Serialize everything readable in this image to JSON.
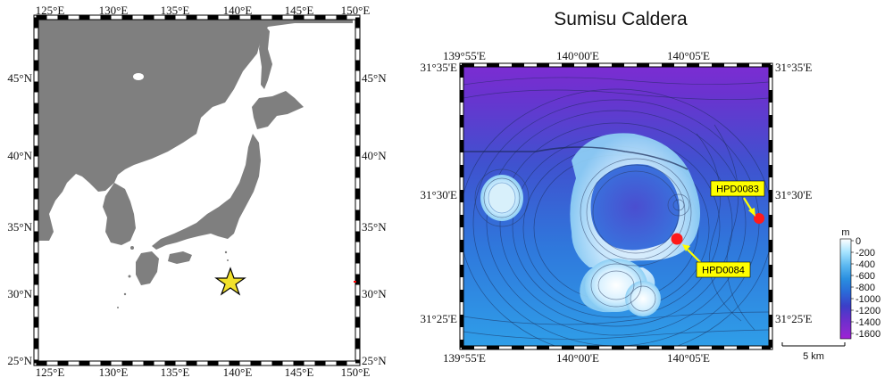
{
  "overview_map": {
    "lon_labels": [
      "125°E",
      "130°E",
      "135°E",
      "140°E",
      "145°E",
      "150°E"
    ],
    "lat_labels": [
      "25°N",
      "30°N",
      "35°N",
      "40°N",
      "45°N"
    ],
    "land_color": "#7f7f7f",
    "sea_color": "#ffffff",
    "marker": {
      "type": "star",
      "color": "#f2e12b",
      "lon": 140.0,
      "lat": 31.2
    }
  },
  "caldera_map": {
    "title": "Sumisu Caldera",
    "lon_labels": [
      "139°55'E",
      "140°00'E",
      "140°05'E"
    ],
    "lat_labels": [
      "31°35'E",
      "31°30'E",
      "31°25'E"
    ],
    "stations": [
      {
        "label": "HPD0083",
        "color": "#ff1a1a"
      },
      {
        "label": "HPD0084",
        "color": "#ff1a1a"
      }
    ],
    "station_label_bg": "#ffff00",
    "scale_bar_label": "5 km"
  },
  "colorbar": {
    "unit": "m",
    "ticks": [
      "0",
      "-200",
      "-400",
      "-600",
      "-800",
      "-1000",
      "-1200",
      "-1400",
      "-1600"
    ],
    "colors": [
      "#ffffff",
      "#a8e4ff",
      "#5ab7f0",
      "#2a8fe0",
      "#2a6bd8",
      "#3b3fc8",
      "#6830cc",
      "#8a2ad0",
      "#a020d6"
    ]
  }
}
